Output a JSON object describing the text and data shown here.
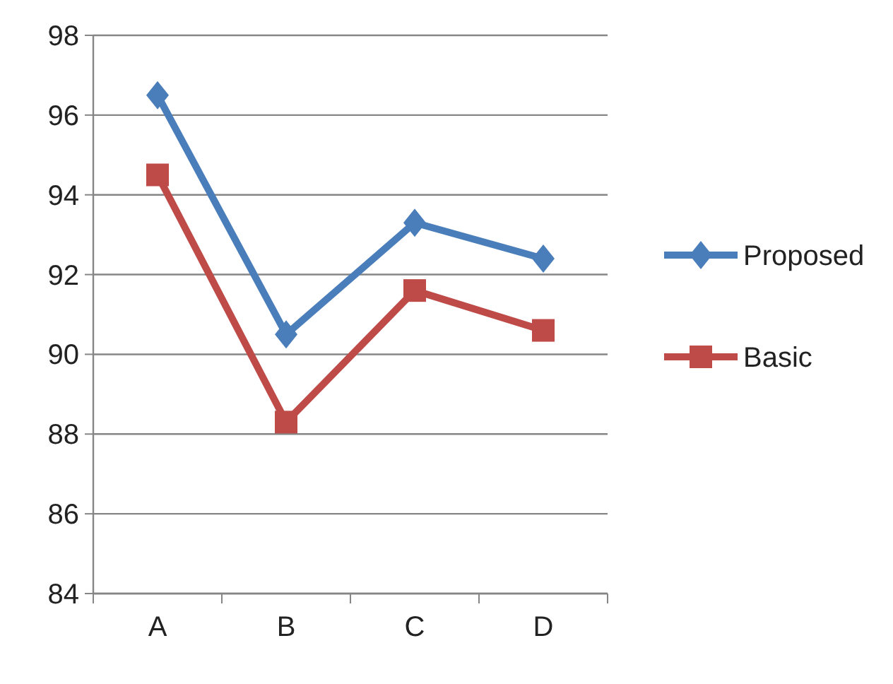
{
  "chart_data": {
    "type": "line",
    "categories": [
      "A",
      "B",
      "C",
      "D"
    ],
    "series": [
      {
        "name": "Proposed",
        "color": "#4a7ebb",
        "marker": "diamond",
        "values": [
          96.5,
          90.5,
          93.3,
          92.4
        ]
      },
      {
        "name": "Basic",
        "color": "#be4b48",
        "marker": "square",
        "values": [
          94.5,
          88.3,
          91.6,
          90.6
        ]
      }
    ],
    "ylim": [
      84,
      98
    ],
    "yticks": [
      84,
      86,
      88,
      90,
      92,
      94,
      96,
      98
    ],
    "grid": "y",
    "legend": "right"
  }
}
